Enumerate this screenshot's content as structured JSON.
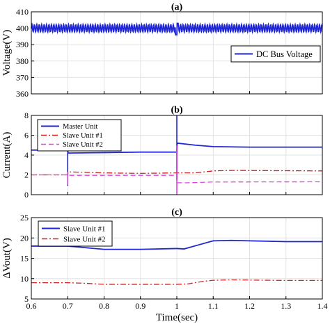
{
  "chart_data": [
    {
      "type": "line",
      "title": "(a)",
      "ylabel": "Voltage(V)",
      "xlim": [
        0.6,
        1.4
      ],
      "ylim": [
        360,
        410
      ],
      "yticks": [
        "360",
        "370",
        "380",
        "390",
        "400",
        "410"
      ],
      "legend": "right",
      "series": [
        {
          "name": "DC Bus Voltage",
          "color": "#1f26d6",
          "style": "solid",
          "base": 400,
          "ripple_amplitude": 2.2,
          "ripple_period": 0.0067,
          "event": {
            "x": 1.0,
            "dip": 396,
            "peak": 403
          }
        }
      ]
    },
    {
      "type": "line",
      "title": "(b)",
      "ylabel": "Current(A)",
      "xlim": [
        0.6,
        1.4
      ],
      "ylim": [
        0,
        8
      ],
      "yticks": [
        "0",
        "2",
        "4",
        "6",
        "8"
      ],
      "legend": "top-left",
      "series": [
        {
          "name": "Master Unit",
          "color": "#1f26d6",
          "style": "solid",
          "points": [
            [
              0.6,
              4.5
            ],
            [
              0.7,
              4.5
            ],
            [
              0.701,
              4.2
            ],
            [
              0.8,
              4.25
            ],
            [
              0.9,
              4.3
            ],
            [
              1.0,
              4.3
            ],
            [
              1.001,
              5.2
            ],
            [
              1.05,
              5.0
            ],
            [
              1.1,
              4.85
            ],
            [
              1.2,
              4.8
            ],
            [
              1.4,
              4.8
            ]
          ],
          "spikes": [
            [
              0.7,
              5.8,
              0.9
            ],
            [
              1.0,
              8.0,
              1.5
            ]
          ]
        },
        {
          "name": "Slave Unit #1",
          "color": "#d62020",
          "style": "dashdot",
          "points": [
            [
              0.6,
              2.0
            ],
            [
              0.7,
              2.0
            ],
            [
              0.701,
              2.3
            ],
            [
              0.8,
              2.2
            ],
            [
              0.9,
              2.15
            ],
            [
              1.0,
              2.2
            ],
            [
              1.05,
              2.2
            ],
            [
              1.1,
              2.4
            ],
            [
              1.15,
              2.45
            ],
            [
              1.4,
              2.4
            ]
          ]
        },
        {
          "name": "Slave Unit #2",
          "color": "#e040e0",
          "style": "dashed",
          "points": [
            [
              0.6,
              2.0
            ],
            [
              0.7,
              2.0
            ],
            [
              0.701,
              1.95
            ],
            [
              1.0,
              1.95
            ],
            [
              1.001,
              1.2
            ],
            [
              1.03,
              1.2
            ],
            [
              1.1,
              1.28
            ],
            [
              1.4,
              1.3
            ]
          ],
          "spikes": [
            [
              0.7,
              2.3,
              1.0
            ],
            [
              1.0,
              5.0,
              0.0
            ]
          ]
        }
      ]
    },
    {
      "type": "line",
      "title": "(c)",
      "xlabel": "Time(sec)",
      "ylabel": "ΔVout(V)",
      "xlim": [
        0.6,
        1.4
      ],
      "ylim": [
        5,
        25
      ],
      "xticks": [
        "0.6",
        "0.7",
        "0.8",
        "0.9",
        "1",
        "1.1",
        "1.2",
        "1.3",
        "1.4"
      ],
      "yticks": [
        "5",
        "10",
        "15",
        "20",
        "25"
      ],
      "legend": "top-left",
      "series": [
        {
          "name": "Slave Unit #1",
          "color": "#1f26d6",
          "style": "solid",
          "points": [
            [
              0.6,
              18.0
            ],
            [
              0.7,
              18.0
            ],
            [
              0.75,
              17.6
            ],
            [
              0.8,
              17.2
            ],
            [
              0.9,
              17.2
            ],
            [
              1.0,
              17.4
            ],
            [
              1.02,
              17.3
            ],
            [
              1.06,
              18.3
            ],
            [
              1.1,
              19.3
            ],
            [
              1.15,
              19.4
            ],
            [
              1.2,
              19.3
            ],
            [
              1.3,
              19.1
            ],
            [
              1.4,
              19.1
            ]
          ]
        },
        {
          "name": "Slave Unit #2",
          "color": "#d62020",
          "style": "dashdot",
          "points": [
            [
              0.6,
              9.0
            ],
            [
              0.7,
              9.0
            ],
            [
              0.75,
              8.85
            ],
            [
              0.8,
              8.6
            ],
            [
              0.9,
              8.6
            ],
            [
              1.0,
              8.6
            ],
            [
              1.03,
              8.7
            ],
            [
              1.07,
              9.3
            ],
            [
              1.1,
              9.6
            ],
            [
              1.15,
              9.7
            ],
            [
              1.2,
              9.65
            ],
            [
              1.3,
              9.55
            ],
            [
              1.4,
              9.55
            ]
          ]
        }
      ]
    }
  ]
}
